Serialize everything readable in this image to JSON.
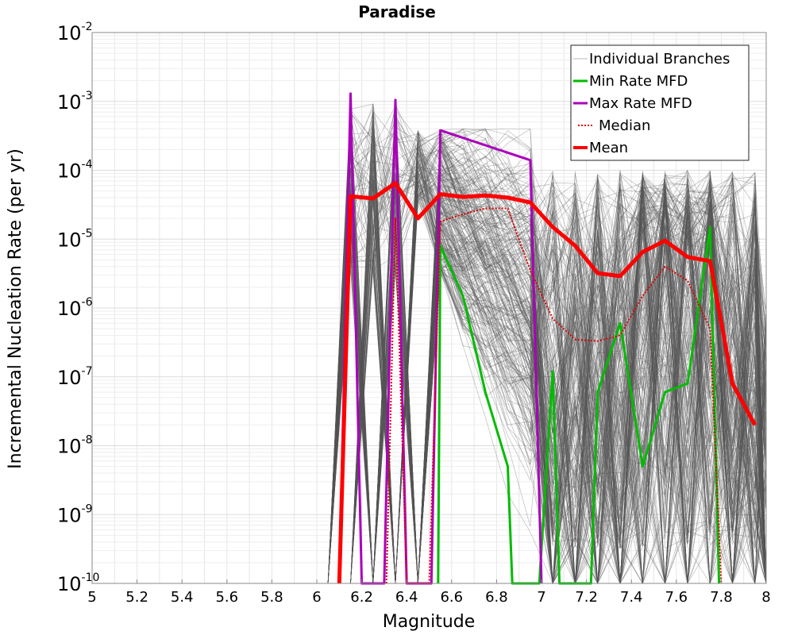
{
  "chart_data": {
    "type": "line",
    "title": "Paradise",
    "xlabel": "Magnitude",
    "ylabel": "Incremental Nucleation Rate (per yr)",
    "xlim": [
      5,
      8
    ],
    "ylim": [
      1e-10,
      0.01
    ],
    "yscale": "log",
    "grid": true,
    "legend_position": "top-right",
    "x_ticks": [
      "5",
      "5.2",
      "5.4",
      "5.6",
      "5.8",
      "6",
      "6.2",
      "6.4",
      "6.6",
      "6.8",
      "7",
      "7.2",
      "7.4",
      "7.6",
      "7.8",
      "8"
    ],
    "y_ticks": [
      {
        "base": "10",
        "exp": "-10"
      },
      {
        "base": "10",
        "exp": "-9"
      },
      {
        "base": "10",
        "exp": "-8"
      },
      {
        "base": "10",
        "exp": "-7"
      },
      {
        "base": "10",
        "exp": "-6"
      },
      {
        "base": "10",
        "exp": "-5"
      },
      {
        "base": "10",
        "exp": "-4"
      },
      {
        "base": "10",
        "exp": "-3"
      },
      {
        "base": "10",
        "exp": "-2"
      }
    ],
    "series": [
      {
        "name": "Individual Branches",
        "color": "#555555",
        "style": "thin",
        "note": "many individual branch curves spanning roughly 1e-10 to 1e-3 between M 6.1 and 8.0"
      },
      {
        "name": "Min Rate MFD",
        "color": "#00bb00",
        "style": "solid",
        "points": [
          [
            6.54,
            1e-10
          ],
          [
            6.55,
            8e-06
          ],
          [
            6.65,
            1.5e-06
          ],
          [
            6.75,
            6e-08
          ],
          [
            6.85,
            5e-09
          ],
          [
            6.87,
            1e-10
          ],
          [
            6.99,
            1e-10
          ],
          [
            7.05,
            1.2e-07
          ],
          [
            7.08,
            1e-10
          ],
          [
            7.22,
            1e-10
          ],
          [
            7.25,
            6e-08
          ],
          [
            7.35,
            6e-07
          ],
          [
            7.45,
            5e-09
          ],
          [
            7.55,
            6e-08
          ],
          [
            7.65,
            8e-08
          ],
          [
            7.75,
            1.5e-05
          ],
          [
            7.79,
            1e-10
          ]
        ]
      },
      {
        "name": "Max Rate MFD",
        "color": "#aa00bb",
        "style": "solid",
        "points": [
          [
            6.1,
            1e-10
          ],
          [
            6.15,
            0.0013
          ],
          [
            6.2,
            1e-10
          ],
          [
            6.3,
            1e-10
          ],
          [
            6.35,
            0.00105
          ],
          [
            6.4,
            1e-10
          ],
          [
            6.51,
            1e-10
          ],
          [
            6.55,
            0.00038
          ],
          [
            6.95,
            0.00014
          ],
          [
            7.0,
            1e-10
          ]
        ]
      },
      {
        "name": "Median",
        "color": "#dd0000",
        "style": "dotted",
        "points": [
          [
            6.31,
            1e-10
          ],
          [
            6.35,
            2e-05
          ],
          [
            6.4,
            1e-10
          ],
          [
            6.5,
            1e-10
          ],
          [
            6.55,
            1.8e-05
          ],
          [
            6.65,
            2.3e-05
          ],
          [
            6.75,
            2.8e-05
          ],
          [
            6.85,
            2.8e-05
          ],
          [
            6.95,
            3.5e-06
          ],
          [
            7.05,
            7e-07
          ],
          [
            7.15,
            3.5e-07
          ],
          [
            7.25,
            3.3e-07
          ],
          [
            7.35,
            4e-07
          ],
          [
            7.45,
            1.5e-06
          ],
          [
            7.55,
            4e-06
          ],
          [
            7.65,
            2.5e-06
          ],
          [
            7.75,
            5e-07
          ],
          [
            7.8,
            1e-10
          ]
        ]
      },
      {
        "name": "Mean",
        "color": "#ff0000",
        "style": "thick",
        "points": [
          [
            6.1,
            1e-10
          ],
          [
            6.15,
            4.2e-05
          ],
          [
            6.25,
            3.9e-05
          ],
          [
            6.35,
            6.5e-05
          ],
          [
            6.45,
            2e-05
          ],
          [
            6.55,
            4.5e-05
          ],
          [
            6.65,
            4.1e-05
          ],
          [
            6.75,
            4.3e-05
          ],
          [
            6.85,
            4e-05
          ],
          [
            6.95,
            3.4e-05
          ],
          [
            7.05,
            1.5e-05
          ],
          [
            7.15,
            8e-06
          ],
          [
            7.25,
            3.2e-06
          ],
          [
            7.35,
            2.9e-06
          ],
          [
            7.45,
            6.5e-06
          ],
          [
            7.55,
            9.5e-06
          ],
          [
            7.65,
            5.5e-06
          ],
          [
            7.75,
            4.8e-06
          ],
          [
            7.85,
            8e-08
          ],
          [
            7.95,
            2e-08
          ]
        ]
      }
    ]
  }
}
